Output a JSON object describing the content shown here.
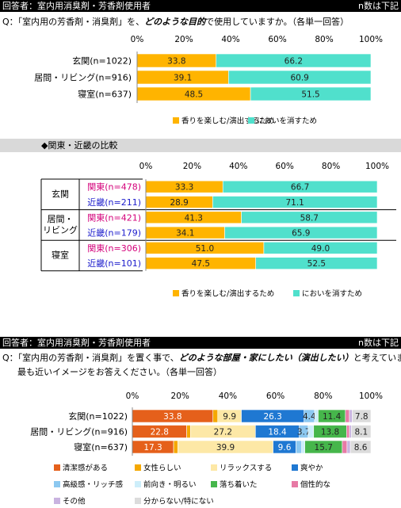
{
  "panels": [
    {
      "respondent": "回答者：室内用消臭剤・芳香剤使用者",
      "n_note": "n数は下記",
      "question": [
        "Q：「室内用の芳香剤・消臭剤」を、",
        "どのような目的",
        "で使用していますか。（各単一回答）"
      ]
    },
    {
      "respondent": "回答者：室内用消臭剤・芳香剤使用者",
      "n_note": "n数は下記",
      "question": [
        "Q：「室内用の芳香剤・消臭剤」を置く事で、",
        "どのような部屋・家にしたい（演出したい）",
        "と考えていますか。"
      ],
      "question_line2": "最も近いイメージをお答えください。（各単一回答）"
    }
  ],
  "chart_data": [
    {
      "type": "stacked_bar_h",
      "categories": [
        "玄関(n=1022)",
        "居間・リビング(n=916)",
        "寝室(n=637)"
      ],
      "series": [
        {
          "name": "香りを楽しむ/演出するため",
          "color": "#ffb400",
          "values": [
            33.8,
            39.1,
            48.5
          ]
        },
        {
          "name": "においを消すため",
          "color": "#50e0cc",
          "values": [
            66.2,
            60.9,
            51.5
          ]
        }
      ],
      "xlim": [
        0,
        100
      ],
      "xticks": [
        {
          "value": 0,
          "label": "0%"
        },
        {
          "value": 20,
          "label": "20%"
        },
        {
          "value": 40,
          "label": "40%"
        },
        {
          "value": 60,
          "label": "60%"
        },
        {
          "value": 80,
          "label": "80%"
        },
        {
          "value": 100,
          "label": "100%"
        }
      ],
      "legend": "bottom"
    },
    {
      "type": "stacked_bar_h",
      "title": "◆関東・近畿の比較",
      "groups": [
        {
          "label": [
            "玄関"
          ],
          "categories": [
            "関東(n=478)",
            "近畿(n=211)"
          ]
        },
        {
          "label": [
            "居間・",
            "リビング"
          ],
          "categories": [
            "関東(n=421)",
            "近畿(n=179)"
          ]
        },
        {
          "label": [
            "寝室"
          ],
          "categories": [
            "関東(n=306)",
            "近畿(n=101)"
          ]
        }
      ],
      "category_colors": [
        "#d4007a",
        "#1c1ccc"
      ],
      "series": [
        {
          "name": "香りを楽しむ/演出するため",
          "color": "#ffb400",
          "values": [
            33.3,
            28.9,
            41.3,
            34.1,
            51.0,
            47.5
          ],
          "value_labels": [
            "33.3",
            "28.9",
            "41.3",
            "34.1",
            "51.0",
            "47.5"
          ]
        },
        {
          "name": "においを消すため",
          "color": "#50e0cc",
          "values": [
            66.7,
            71.1,
            58.7,
            65.9,
            49.0,
            52.5
          ],
          "value_labels": [
            "66.7",
            "71.1",
            "58.7",
            "65.9",
            "49.0",
            "52.5"
          ]
        }
      ],
      "xlim": [
        0,
        100
      ],
      "xticks": [
        {
          "value": 0,
          "label": "0%"
        },
        {
          "value": 20,
          "label": "20%"
        },
        {
          "value": 40,
          "label": "40%"
        },
        {
          "value": 60,
          "label": "60%"
        },
        {
          "value": 80,
          "label": "80%"
        },
        {
          "value": 100,
          "label": "100%"
        }
      ],
      "legend": "bottom"
    },
    {
      "type": "stacked_bar_h",
      "categories": [
        "玄関(n=1022)",
        "居間・リビング(n=916)",
        "寝室(n=637)"
      ],
      "series": [
        {
          "name": "清潔感がある",
          "color": "#e5601b",
          "values": [
            33.8,
            22.8,
            17.3
          ],
          "value_labels": [
            "33.8",
            "22.8",
            "17.3"
          ]
        },
        {
          "name": "女性らしい",
          "color": "#f5a800",
          "values": [
            2.0,
            1.6,
            1.8
          ],
          "value_labels": [
            null,
            null,
            null
          ]
        },
        {
          "name": "リラックスする",
          "color": "#fde8a6",
          "values": [
            9.9,
            27.2,
            39.9
          ],
          "value_labels": [
            "9.9",
            "27.2",
            "39.9"
          ]
        },
        {
          "name": "爽やか",
          "color": "#1f78d2",
          "values": [
            26.3,
            18.4,
            9.6
          ],
          "value_labels": [
            "26.3",
            "18.4",
            "9.6"
          ]
        },
        {
          "name": "高級感・リッチ感",
          "color": "#8cc8f0",
          "values": [
            4.4,
            3.7,
            2.4
          ],
          "value_labels": [
            "4.4",
            "3.7",
            null
          ]
        },
        {
          "name": "前向き・明るい",
          "color": "#cdeefa",
          "values": [
            1.5,
            2.3,
            1.3
          ],
          "value_labels": [
            null,
            null,
            null
          ]
        },
        {
          "name": "落ち着いた",
          "color": "#46b64b",
          "values": [
            11.4,
            13.8,
            15.7
          ],
          "value_labels": [
            "11.4",
            "13.8",
            "15.7"
          ]
        },
        {
          "name": "個性的な",
          "color": "#e77aa5",
          "values": [
            1.7,
            1.2,
            2.0
          ],
          "value_labels": [
            null,
            null,
            null
          ]
        },
        {
          "name": "その他",
          "color": "#c9b3e0",
          "values": [
            1.2,
            0.9,
            1.4
          ],
          "value_labels": [
            null,
            null,
            null
          ]
        },
        {
          "name": "分からない/特にない",
          "color": "#dcdcdc",
          "values": [
            7.8,
            8.1,
            8.6
          ],
          "value_labels": [
            "7.8",
            "8.1",
            "8.6"
          ]
        }
      ],
      "xlim": [
        0,
        100
      ],
      "xticks": [
        {
          "value": 0,
          "label": "0%"
        },
        {
          "value": 20,
          "label": "20%"
        },
        {
          "value": 40,
          "label": "40%"
        },
        {
          "value": 60,
          "label": "60%"
        },
        {
          "value": 80,
          "label": "80%"
        },
        {
          "value": 100,
          "label": "100%"
        }
      ],
      "legend": "bottom"
    }
  ]
}
